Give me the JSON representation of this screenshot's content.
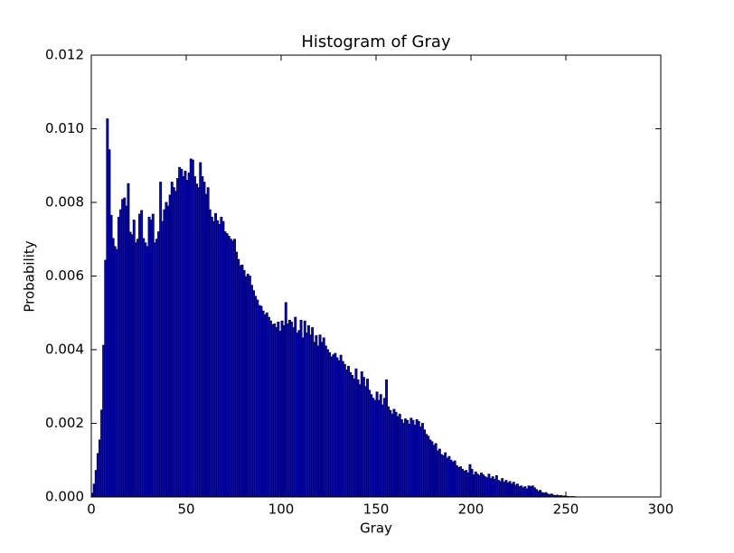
{
  "chart_data": {
    "type": "histogram",
    "title": "Histogram of Gray",
    "x_label": "Gray",
    "y_label": "Probability",
    "color": "#0000ff",
    "edgecolor": "#000000",
    "bins": [
      0,
      1,
      2,
      3,
      4,
      5,
      6,
      7,
      8,
      9,
      10,
      11,
      12,
      13,
      14,
      15,
      16,
      17,
      18,
      19,
      20,
      21,
      22,
      23,
      24,
      25,
      26,
      27,
      28,
      29,
      30,
      31,
      32,
      33,
      34,
      35,
      36,
      37,
      38,
      39,
      40,
      41,
      42,
      43,
      44,
      45,
      46,
      47,
      48,
      49,
      50,
      51,
      52,
      53,
      54,
      55,
      56,
      57,
      58,
      59,
      60,
      61,
      62,
      63,
      64,
      65,
      66,
      67,
      68,
      69,
      70,
      71,
      72,
      73,
      74,
      75,
      76,
      77,
      78,
      79,
      80,
      81,
      82,
      83,
      84,
      85,
      86,
      87,
      88,
      89,
      90,
      91,
      92,
      93,
      94,
      95,
      96,
      97,
      98,
      99,
      100,
      101,
      102,
      103,
      104,
      105,
      106,
      107,
      108,
      109,
      110,
      111,
      112,
      113,
      114,
      115,
      116,
      117,
      118,
      119,
      120,
      121,
      122,
      123,
      124,
      125,
      126,
      127,
      128,
      129,
      130,
      131,
      132,
      133,
      134,
      135,
      136,
      137,
      138,
      139,
      140,
      141,
      142,
      143,
      144,
      145,
      146,
      147,
      148,
      149,
      150,
      151,
      152,
      153,
      154,
      155,
      156,
      157,
      158,
      159,
      160,
      161,
      162,
      163,
      164,
      165,
      166,
      167,
      168,
      169,
      170,
      171,
      172,
      173,
      174,
      175,
      176,
      177,
      178,
      179,
      180,
      181,
      182,
      183,
      184,
      185,
      186,
      187,
      188,
      189,
      190,
      191,
      192,
      193,
      194,
      195,
      196,
      197,
      198,
      199,
      200,
      201,
      202,
      203,
      204,
      205,
      206,
      207,
      208,
      209,
      210,
      211,
      212,
      213,
      214,
      215,
      216,
      217,
      218,
      219,
      220,
      221,
      222,
      223,
      224,
      225,
      226,
      227,
      228,
      229,
      230,
      231,
      232,
      233,
      234,
      235,
      236,
      237,
      238,
      239,
      240,
      241,
      242,
      243,
      244,
      245,
      246,
      247,
      248,
      249,
      250,
      251,
      252,
      253,
      254,
      255,
      256
    ],
    "values": [
      0.0001,
      0.00035,
      0.00072,
      0.00118,
      0.00155,
      0.00236,
      0.00412,
      0.00643,
      0.01027,
      0.00943,
      0.00765,
      0.00702,
      0.0068,
      0.00672,
      0.0076,
      0.0078,
      0.00808,
      0.00812,
      0.0079,
      0.00851,
      0.00719,
      0.00712,
      0.00752,
      0.0069,
      0.007,
      0.00768,
      0.00778,
      0.00702,
      0.0069,
      0.0068,
      0.0076,
      0.00752,
      0.00768,
      0.0069,
      0.007,
      0.0072,
      0.00855,
      0.00748,
      0.0078,
      0.008,
      0.0079,
      0.0082,
      0.00855,
      0.0084,
      0.0083,
      0.00865,
      0.00895,
      0.0089,
      0.0087,
      0.00885,
      0.0086,
      0.0088,
      0.00918,
      0.00915,
      0.0087,
      0.0085,
      0.0084,
      0.00908,
      0.0087,
      0.00855,
      0.00822,
      0.0084,
      0.0078,
      0.0076,
      0.00748,
      0.0077,
      0.0075,
      0.0074,
      0.0076,
      0.00748,
      0.0072,
      0.00715,
      0.00708,
      0.007,
      0.00695,
      0.007,
      0.00665,
      0.00645,
      0.00628,
      0.0063,
      0.00615,
      0.00598,
      0.00605,
      0.006,
      0.00575,
      0.0056,
      0.00545,
      0.00535,
      0.0052,
      0.00518,
      0.00505,
      0.00495,
      0.005,
      0.00488,
      0.00478,
      0.00468,
      0.0047,
      0.0046,
      0.00475,
      0.0045,
      0.00478,
      0.00465,
      0.00528,
      0.0047,
      0.0048,
      0.00475,
      0.0046,
      0.00488,
      0.00445,
      0.00452,
      0.0048,
      0.00432,
      0.00478,
      0.00445,
      0.00465,
      0.0044,
      0.0046,
      0.0042,
      0.00438,
      0.0041,
      0.0044,
      0.0042,
      0.00432,
      0.0041,
      0.004,
      0.00392,
      0.0038,
      0.00386,
      0.0039,
      0.00378,
      0.0037,
      0.00385,
      0.00368,
      0.0036,
      0.00345,
      0.00355,
      0.00338,
      0.0033,
      0.0032,
      0.00348,
      0.00318,
      0.00305,
      0.0034,
      0.00325,
      0.003,
      0.0032,
      0.0029,
      0.00278,
      0.00268,
      0.00262,
      0.00285,
      0.00262,
      0.00278,
      0.0025,
      0.00268,
      0.00318,
      0.00245,
      0.00235,
      0.00225,
      0.00238,
      0.0023,
      0.00218,
      0.00225,
      0.0021,
      0.002,
      0.00212,
      0.00208,
      0.00198,
      0.00214,
      0.00208,
      0.00195,
      0.0021,
      0.00205,
      0.0019,
      0.002,
      0.00182,
      0.0017,
      0.00165,
      0.00155,
      0.0015,
      0.0014,
      0.00145,
      0.00125,
      0.0013,
      0.00115,
      0.00112,
      0.0012,
      0.00105,
      0.0011,
      0.001,
      0.00095,
      0.00098,
      0.00085,
      0.0008,
      0.00082,
      0.00075,
      0.0007,
      0.00072,
      0.00065,
      0.00088,
      0.00075,
      0.0006,
      0.00068,
      0.00062,
      0.00058,
      0.00065,
      0.0006,
      0.00055,
      0.00052,
      0.00062,
      0.0005,
      0.00055,
      0.00048,
      0.00058,
      0.00045,
      0.00042,
      0.0005,
      0.0004,
      0.00045,
      0.00038,
      0.00042,
      0.00035,
      0.0004,
      0.00032,
      0.00035,
      0.00028,
      0.0003,
      0.00025,
      0.00028,
      0.00022,
      0.0003,
      0.00028,
      0.0003,
      0.00025,
      0.0002,
      0.00015,
      0.00018,
      0.00012,
      0.0001,
      0.00012,
      8e-05,
      6e-05,
      8e-05,
      5e-05,
      4e-05,
      5e-05,
      3e-05,
      4e-05,
      2e-05,
      3e-05,
      2e-05,
      1e-05,
      1e-05,
      1e-05,
      1e-05,
      0.0
    ],
    "xlim": [
      0,
      300
    ],
    "xticks": [
      0,
      50,
      100,
      150,
      200,
      250,
      300
    ],
    "ylim": [
      0,
      0.012
    ],
    "yticks": [
      {
        "value": 0,
        "label": "0.000"
      },
      {
        "value": 0.002,
        "label": "0.002"
      },
      {
        "value": 0.004,
        "label": "0.004"
      },
      {
        "value": 0.006,
        "label": "0.006"
      },
      {
        "value": 0.008,
        "label": "0.008"
      },
      {
        "value": 0.01,
        "label": "0.010"
      },
      {
        "value": 0.012,
        "label": "0.012"
      }
    ],
    "grid": false
  }
}
